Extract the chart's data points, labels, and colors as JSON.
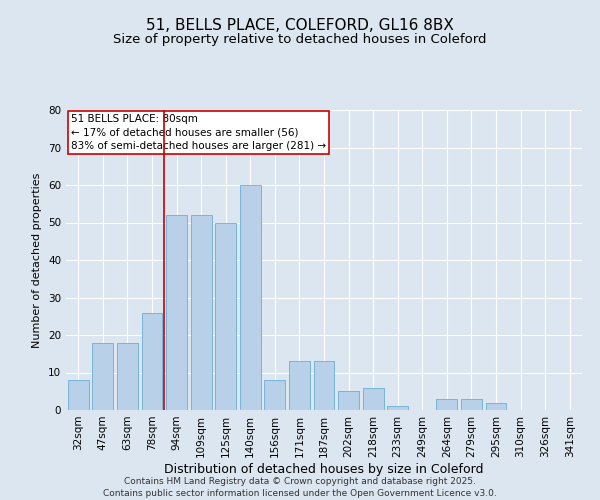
{
  "title1": "51, BELLS PLACE, COLEFORD, GL16 8BX",
  "title2": "Size of property relative to detached houses in Coleford",
  "xlabel": "Distribution of detached houses by size in Coleford",
  "ylabel": "Number of detached properties",
  "categories": [
    "32sqm",
    "47sqm",
    "63sqm",
    "78sqm",
    "94sqm",
    "109sqm",
    "125sqm",
    "140sqm",
    "156sqm",
    "171sqm",
    "187sqm",
    "202sqm",
    "218sqm",
    "233sqm",
    "249sqm",
    "264sqm",
    "279sqm",
    "295sqm",
    "310sqm",
    "326sqm",
    "341sqm"
  ],
  "values": [
    8,
    18,
    18,
    26,
    52,
    52,
    50,
    60,
    8,
    13,
    13,
    5,
    6,
    1,
    0,
    3,
    3,
    2,
    0,
    0,
    0
  ],
  "bar_color": "#b8d0e8",
  "bar_edge_color": "#6aaed6",
  "annotation_box_color": "#ffffff",
  "annotation_box_edge": "#cc0000",
  "vline_color": "#cc0000",
  "vline_x": 3.5,
  "annotation_text": "51 BELLS PLACE: 80sqm\n← 17% of detached houses are smaller (56)\n83% of semi-detached houses are larger (281) →",
  "background_color": "#dce6f0",
  "grid_color": "#ffffff",
  "ylim": [
    0,
    80
  ],
  "yticks": [
    0,
    10,
    20,
    30,
    40,
    50,
    60,
    70,
    80
  ],
  "footer": "Contains HM Land Registry data © Crown copyright and database right 2025.\nContains public sector information licensed under the Open Government Licence v3.0.",
  "title1_fontsize": 11,
  "title2_fontsize": 9.5,
  "xlabel_fontsize": 9,
  "ylabel_fontsize": 8,
  "tick_fontsize": 7.5,
  "annotation_fontsize": 7.5,
  "footer_fontsize": 6.5
}
